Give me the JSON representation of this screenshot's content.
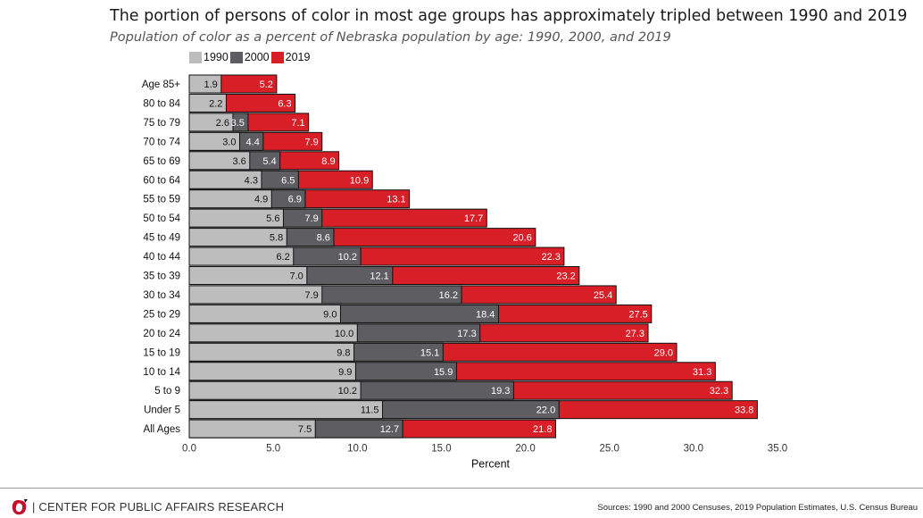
{
  "title": "The portion of persons of color in most age groups has approximately tripled between 1990 and 2019",
  "subtitle": "Population of color as a percent of Nebraska population by age: 1990, 2000, and 2019",
  "legend": [
    {
      "label": "1990",
      "color": "#bdbdbd"
    },
    {
      "label": "2000",
      "color": "#5e5e62"
    },
    {
      "label": "2019",
      "color": "#d81e26"
    }
  ],
  "footer": {
    "org": "| CENTER FOR PUBLIC AFFAIRS RESEARCH",
    "logo_icon": "university-o-logo-icon",
    "sources": "Sources: 1990 and 2000 Censuses, 2019 Population Estimates, U.S. Census Bureau"
  },
  "chart_data": {
    "type": "bar",
    "orientation": "horizontal",
    "overlapping": true,
    "categories": [
      "Age 85+",
      "80 to 84",
      "75 to 79",
      "70 to 74",
      "65 to 69",
      "60 to 64",
      "55 to 59",
      "50 to 54",
      "45 to 49",
      "40 to 44",
      "35 to 39",
      "30 to 34",
      "25 to 29",
      "20 to 24",
      "15 to 19",
      "10 to 14",
      "5 to 9",
      "Under 5",
      "All Ages"
    ],
    "series": [
      {
        "name": "1990",
        "color": "#bdbdbd",
        "values": [
          1.9,
          2.2,
          2.6,
          3.0,
          3.6,
          4.3,
          4.9,
          5.6,
          5.8,
          6.2,
          7.0,
          7.9,
          9.0,
          10.0,
          9.8,
          9.9,
          10.2,
          11.5,
          7.5
        ]
      },
      {
        "name": "2000",
        "color": "#5e5e62",
        "values": [
          null,
          null,
          3.5,
          4.4,
          5.4,
          6.5,
          6.9,
          7.9,
          8.6,
          10.2,
          12.1,
          16.2,
          18.4,
          17.3,
          15.1,
          15.9,
          19.3,
          22.0,
          12.7
        ]
      },
      {
        "name": "2019",
        "color": "#d81e26",
        "values": [
          5.2,
          6.3,
          7.1,
          7.9,
          8.9,
          10.9,
          13.1,
          17.7,
          20.6,
          22.3,
          23.2,
          25.4,
          27.5,
          27.3,
          29.0,
          31.3,
          32.3,
          33.8,
          21.8
        ]
      }
    ],
    "xlabel": "Percent",
    "ylabel": "",
    "xlim": [
      0,
      35
    ],
    "xticks": [
      "0.0",
      "5.0",
      "10.0",
      "15.0",
      "20.0",
      "25.0",
      "30.0",
      "35.0"
    ],
    "legend_position": "top-left",
    "grid": false
  }
}
